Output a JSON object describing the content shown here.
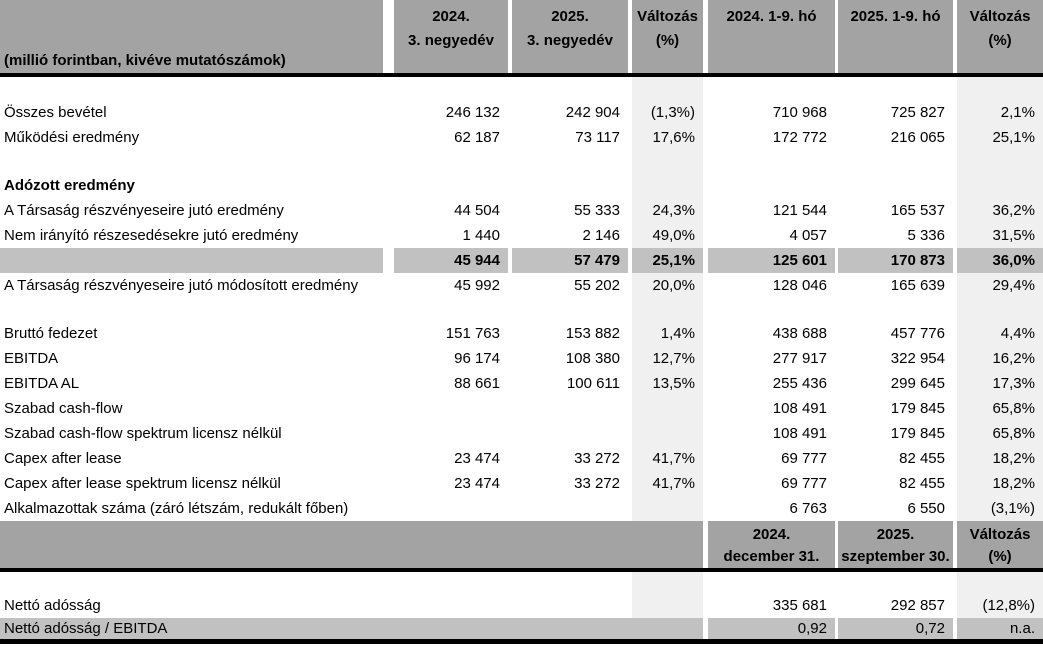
{
  "meta": {
    "unit_note": "(millió forintban, kivéve mutatószámok)"
  },
  "colors": {
    "header_bg": "#a3a3a3",
    "total_row_bg": "#c1c1c1",
    "change_column_bg": "#f0f0f0",
    "rule": "#000000"
  },
  "header": {
    "q3_2024": {
      "l1": "2024.",
      "l2": "3. negyedév"
    },
    "q3_2025": {
      "l1": "2025.",
      "l2": "3. negyedév"
    },
    "chg_q": {
      "l1": "Változás",
      "l2": "(%)"
    },
    "ytd_2024": {
      "l1": "2024. 1-9. hó",
      "l2": ""
    },
    "ytd_2025": {
      "l1": "2025. 1-9. hó",
      "l2": ""
    },
    "chg_ytd": {
      "l1": "Változás",
      "l2": "(%)"
    }
  },
  "rows": [
    {
      "style": "blank"
    },
    {
      "style": "normal",
      "label": "Összes bevétel",
      "q3_2024": "246 132",
      "q3_2025": "242 904",
      "chg_q": "(1,3%)",
      "ytd_2024": "710 968",
      "ytd_2025": "725 827",
      "chg_ytd": "2,1%"
    },
    {
      "style": "normal",
      "label": "Működési eredmény",
      "q3_2024": "62 187",
      "q3_2025": "73 117",
      "chg_q": "17,6%",
      "ytd_2024": "172 772",
      "ytd_2025": "216 065",
      "chg_ytd": "25,1%"
    },
    {
      "style": "blank"
    },
    {
      "style": "section",
      "label": "Adózott eredmény",
      "q3_2024": "",
      "q3_2025": "",
      "chg_q": "",
      "ytd_2024": "",
      "ytd_2025": "",
      "chg_ytd": ""
    },
    {
      "style": "normal",
      "label": "A Társaság részvényeseire jutó eredmény",
      "q3_2024": "44 504",
      "q3_2025": "55 333",
      "chg_q": "24,3%",
      "ytd_2024": "121 544",
      "ytd_2025": "165 537",
      "chg_ytd": "36,2%"
    },
    {
      "style": "normal",
      "label": "Nem irányító részesedésekre jutó eredmény",
      "q3_2024": "1 440",
      "q3_2025": "2 146",
      "chg_q": "49,0%",
      "ytd_2024": "4 057",
      "ytd_2025": "5 336",
      "chg_ytd": "31,5%"
    },
    {
      "style": "total",
      "label": "",
      "q3_2024": "45 944",
      "q3_2025": "57 479",
      "chg_q": "25,1%",
      "ytd_2024": "125 601",
      "ytd_2025": "170 873",
      "chg_ytd": "36,0%"
    },
    {
      "style": "normal",
      "label": "A Társaság részvényeseire jutó módosított eredmény",
      "q3_2024": "45 992",
      "q3_2025": "55 202",
      "chg_q": "20,0%",
      "ytd_2024": "128 046",
      "ytd_2025": "165 639",
      "chg_ytd": "29,4%"
    },
    {
      "style": "blank"
    },
    {
      "style": "normal",
      "label": "Bruttó fedezet",
      "q3_2024": "151 763",
      "q3_2025": "153 882",
      "chg_q": "1,4%",
      "ytd_2024": "438 688",
      "ytd_2025": "457 776",
      "chg_ytd": "4,4%"
    },
    {
      "style": "normal",
      "label": "EBITDA",
      "q3_2024": "96 174",
      "q3_2025": "108 380",
      "chg_q": "12,7%",
      "ytd_2024": "277 917",
      "ytd_2025": "322 954",
      "chg_ytd": "16,2%"
    },
    {
      "style": "normal",
      "label": "EBITDA AL",
      "q3_2024": "88 661",
      "q3_2025": "100 611",
      "chg_q": "13,5%",
      "ytd_2024": "255 436",
      "ytd_2025": "299 645",
      "chg_ytd": "17,3%"
    },
    {
      "style": "normal",
      "label": "Szabad cash-flow",
      "q3_2024": "",
      "q3_2025": "",
      "chg_q": "",
      "ytd_2024": "108 491",
      "ytd_2025": "179 845",
      "chg_ytd": "65,8%"
    },
    {
      "style": "normal",
      "label": "Szabad cash-flow spektrum licensz nélkül",
      "q3_2024": "",
      "q3_2025": "",
      "chg_q": "",
      "ytd_2024": "108 491",
      "ytd_2025": "179 845",
      "chg_ytd": "65,8%"
    },
    {
      "style": "normal",
      "label": "Capex after lease",
      "q3_2024": "23 474",
      "q3_2025": "33 272",
      "chg_q": "41,7%",
      "ytd_2024": "69 777",
      "ytd_2025": "82 455",
      "chg_ytd": "18,2%"
    },
    {
      "style": "normal",
      "label": "Capex after lease spektrum licensz nélkül",
      "q3_2024": "23 474",
      "q3_2025": "33 272",
      "chg_q": "41,7%",
      "ytd_2024": "69 777",
      "ytd_2025": "82 455",
      "chg_ytd": "18,2%"
    },
    {
      "style": "normal",
      "label": "Alkalmazottak száma (záró létszám, redukált főben)",
      "q3_2024": "",
      "q3_2025": "",
      "chg_q": "",
      "ytd_2024": "6 763",
      "ytd_2025": "6 550",
      "chg_ytd": "(3,1%)"
    }
  ],
  "balance_header": {
    "date_2024": {
      "l1": "2024.",
      "l2": "december 31."
    },
    "date_2025": {
      "l1": "2025.",
      "l2": "szeptember 30."
    },
    "chg": {
      "l1": "Változás",
      "l2": "(%)"
    }
  },
  "balance_rows": [
    {
      "style": "blank"
    },
    {
      "style": "normal",
      "label": "Nettó adósság",
      "q3_2024": "",
      "q3_2025": "",
      "chg_q": "",
      "ytd_2024": "335 681",
      "ytd_2025": "292 857",
      "chg_ytd": "(12,8%)"
    },
    {
      "style": "btotal",
      "merge_label": true,
      "label": "Nettó adósság / EBITDA",
      "ytd_2024": "0,92",
      "ytd_2025": "0,72",
      "chg_ytd": "n.a."
    }
  ]
}
